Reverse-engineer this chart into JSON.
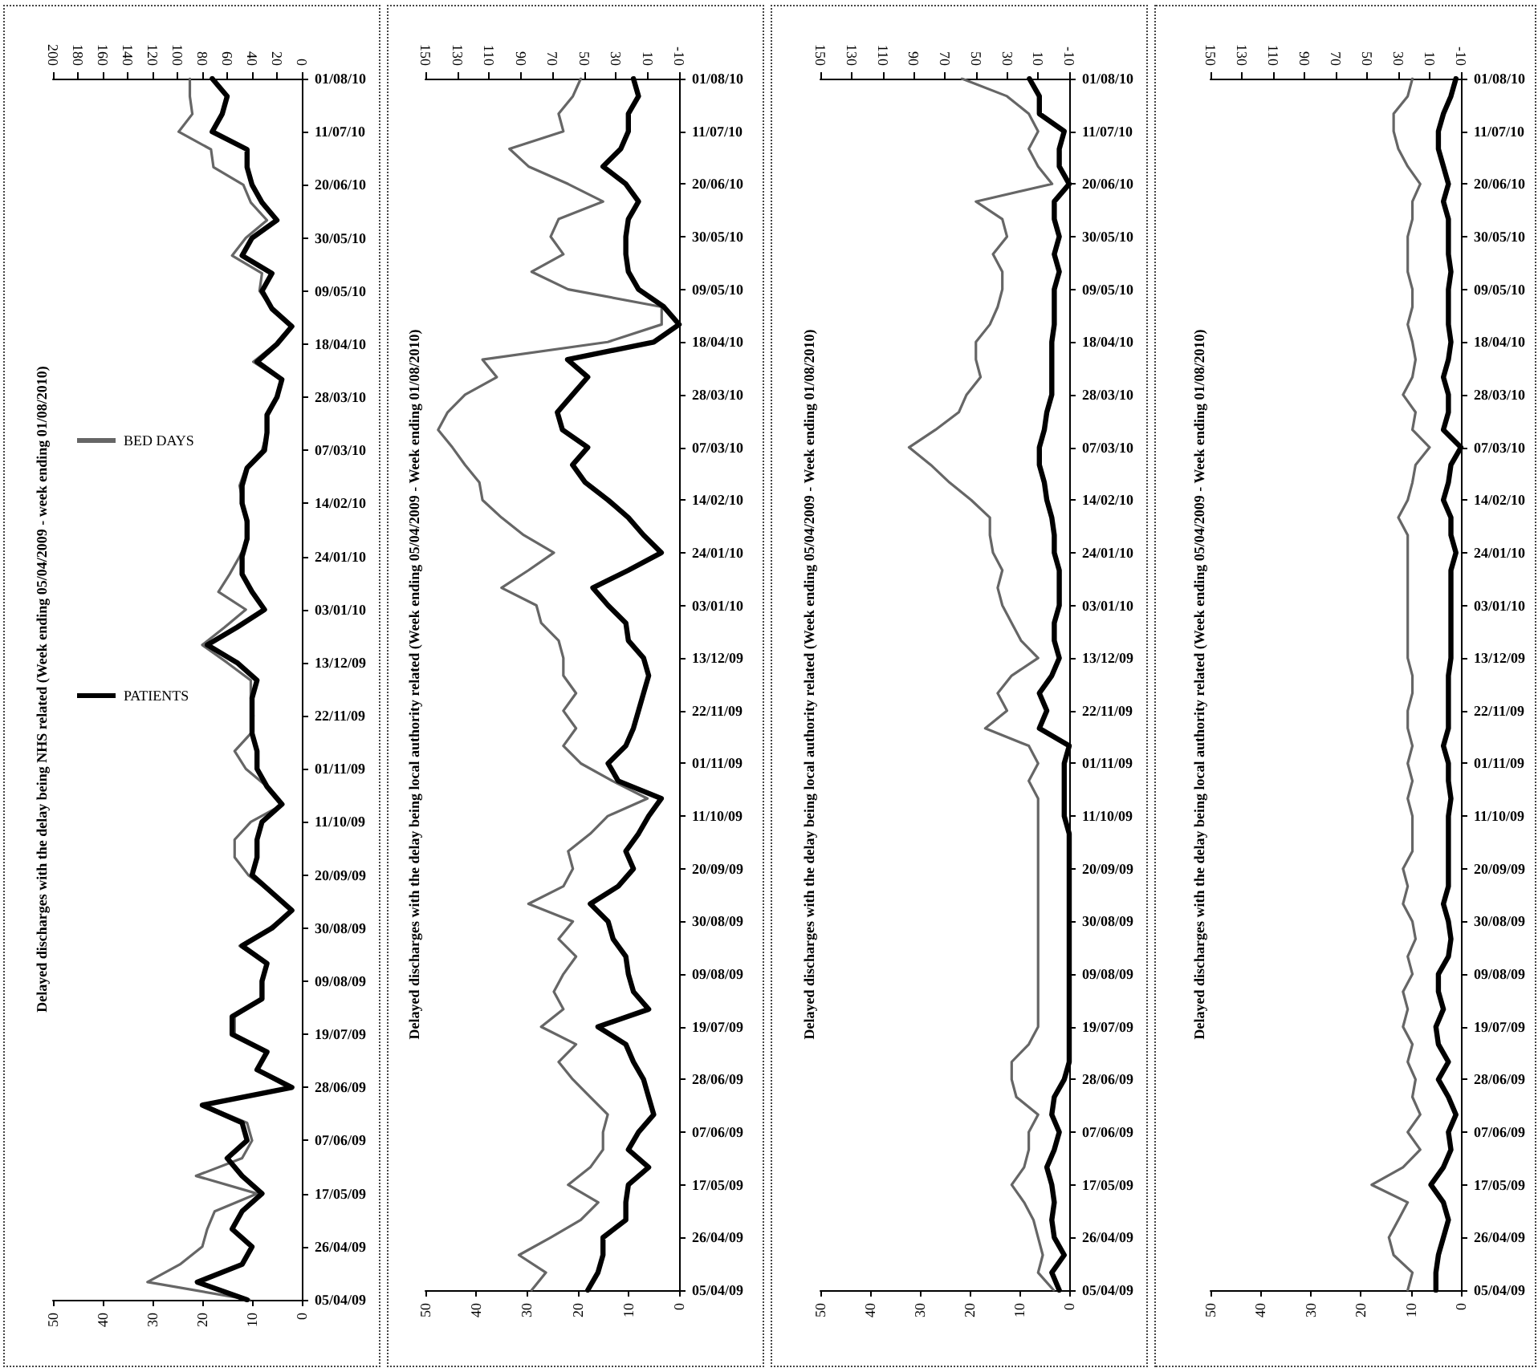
{
  "chart_data": [
    {
      "type": "line",
      "orientation": "horizontal",
      "title": "Delayed discharges with the delay being NHS related (Week ending 05/04/2009 - week ending 01/08/2010)",
      "categories": [
        "01/08/10",
        null,
        null,
        "11/07/10",
        null,
        null,
        "20/06/10",
        null,
        null,
        "30/05/10",
        null,
        null,
        "09/05/10",
        null,
        null,
        "18/04/10",
        null,
        null,
        "28/03/10",
        null,
        null,
        "07/03/10",
        null,
        null,
        "14/02/10",
        null,
        null,
        "24/01/10",
        null,
        null,
        "03/01/10",
        null,
        null,
        "13/12/09",
        null,
        null,
        "22/11/09",
        null,
        null,
        "01/11/09",
        null,
        null,
        "11/10/09",
        null,
        null,
        "20/09/09",
        null,
        null,
        "30/08/09",
        null,
        null,
        "09/08/09",
        null,
        null,
        "19/07/09",
        null,
        null,
        "28/06/09",
        null,
        null,
        "07/06/09",
        null,
        null,
        "17/05/09",
        null,
        null,
        "26/04/09",
        null,
        null,
        "05/04/09"
      ],
      "series": [
        {
          "name": "PATIENTS",
          "color": "#000000",
          "values": [
            18,
            15,
            16,
            18,
            11,
            11,
            10,
            8,
            5,
            10,
            12,
            6,
            8,
            6,
            2,
            5,
            9,
            4,
            5,
            7,
            7,
            7.5,
            11,
            12,
            12,
            11,
            11,
            12,
            12,
            10,
            7.5,
            13,
            19,
            13,
            9,
            10,
            10,
            10,
            9,
            9,
            7,
            4,
            8,
            9,
            9,
            10,
            6,
            2,
            6,
            12,
            7,
            8,
            8,
            14,
            14,
            7,
            9,
            2,
            20,
            12,
            11,
            15,
            12,
            8,
            12,
            14,
            10,
            12,
            21,
            11
          ]
        },
        {
          "name": "BED DAYS",
          "color": "#666666",
          "axis": "x2",
          "values": [
            90,
            90,
            88,
            99,
            73,
            71,
            47,
            41,
            28,
            45,
            56,
            32,
            34,
            24,
            9,
            21,
            39,
            17,
            19,
            28,
            28,
            32,
            45,
            50,
            47,
            45,
            43,
            50,
            58,
            67,
            45,
            62,
            80,
            60,
            41,
            41,
            39,
            41,
            54,
            45,
            28,
            15,
            41,
            54,
            54,
            43,
            24,
            8,
            26,
            50,
            28,
            32,
            32,
            54,
            54,
            28,
            37,
            11,
            78,
            44,
            40,
            48,
            85,
            36,
            70,
            76,
            80,
            98,
            124,
            42
          ]
        }
      ],
      "xlim": [
        50,
        0
      ],
      "xticks": [
        50,
        40,
        30,
        20,
        10,
        0
      ],
      "x2lim": [
        200,
        0
      ],
      "x2ticks": [
        200,
        180,
        160,
        140,
        120,
        100,
        80,
        60,
        40,
        20,
        0
      ],
      "legend": "left"
    },
    {
      "type": "line",
      "orientation": "horizontal",
      "title": "Delayed discharges with the delay being local authority related (Week ending 05/04/2009 - Week ending 01/08/2010)",
      "categories": [
        "01/08/10",
        null,
        null,
        "11/07/10",
        null,
        null,
        "20/06/10",
        null,
        null,
        "30/05/10",
        null,
        null,
        "09/05/10",
        null,
        null,
        "18/04/10",
        null,
        null,
        "28/03/10",
        null,
        null,
        "07/03/10",
        null,
        null,
        "14/02/10",
        null,
        null,
        "24/01/10",
        null,
        null,
        "03/01/10",
        null,
        null,
        "13/12/09",
        null,
        null,
        "22/11/09",
        null,
        null,
        "01/11/09",
        null,
        null,
        "11/10/09",
        null,
        null,
        "20/09/09",
        null,
        null,
        "30/08/09",
        null,
        null,
        "09/08/09",
        null,
        null,
        "19/07/09",
        null,
        null,
        "28/06/09",
        null,
        null,
        "07/06/09",
        null,
        null,
        "17/05/09",
        null,
        null,
        "26/04/09",
        null,
        null,
        "05/04/09"
      ],
      "series": [
        {
          "color": "#000000",
          "values": [
            9,
            8,
            10,
            10,
            11.5,
            15,
            10.5,
            8,
            10,
            10.5,
            10.5,
            10,
            8,
            3,
            0,
            5,
            22,
            18,
            21,
            24,
            23,
            18,
            21,
            18.5,
            14,
            10,
            7,
            3.5,
            10,
            17,
            14,
            10.5,
            10,
            7,
            6,
            7,
            8,
            9,
            10.5,
            14,
            12,
            3.5,
            6,
            8,
            10.5,
            9,
            12,
            17.5,
            14,
            13,
            10.5,
            10,
            9,
            6,
            16,
            10.5,
            9,
            7,
            6,
            5,
            8,
            10,
            6,
            10,
            10.5,
            10.5,
            15,
            15,
            16,
            18
          ]
        },
        {
          "color": "#666666",
          "axis": "x2",
          "values": [
            52,
            57,
            66,
            63,
            97,
            85,
            60,
            38,
            66,
            71,
            63,
            83,
            60,
            1,
            1,
            35,
            114,
            105,
            125,
            136,
            142,
            133,
            125,
            116,
            114,
            102,
            88,
            69,
            85,
            102,
            80,
            77,
            66,
            63,
            63,
            55,
            63,
            55,
            63,
            52,
            32,
            10,
            35,
            46,
            60,
            57,
            63,
            85,
            57,
            66,
            55,
            63,
            69,
            63,
            77,
            55,
            66,
            57,
            46,
            35,
            38,
            38,
            46,
            60,
            41,
            52,
            71,
            91,
            74,
            83
          ]
        }
      ],
      "xlim": [
        50,
        0
      ],
      "xticks": [
        50,
        40,
        30,
        20,
        10,
        0
      ],
      "x2lim": [
        150,
        -10
      ],
      "x2ticks": [
        150,
        130,
        110,
        90,
        70,
        50,
        30,
        10,
        -10
      ]
    },
    {
      "type": "line",
      "orientation": "horizontal",
      "title": "Delayed discharges with the delay being local authority related (Week ending 05/04/2009 - Week ending 01/08/2010)",
      "categories": [
        "01/08/10",
        null,
        null,
        "11/07/10",
        null,
        null,
        "20/06/10",
        null,
        null,
        "30/05/10",
        null,
        null,
        "09/05/10",
        null,
        null,
        "18/04/10",
        null,
        null,
        "28/03/10",
        null,
        null,
        "07/03/10",
        null,
        null,
        "14/02/10",
        null,
        null,
        "24/01/10",
        null,
        null,
        "03/01/10",
        null,
        null,
        "13/12/09",
        null,
        null,
        "22/11/09",
        null,
        null,
        "01/11/09",
        null,
        null,
        "11/10/09",
        null,
        null,
        "20/09/09",
        null,
        null,
        "30/08/09",
        null,
        null,
        "09/08/09",
        null,
        null,
        "19/07/09",
        null,
        null,
        "28/06/09",
        null,
        null,
        "07/06/09",
        null,
        null,
        "17/05/09",
        null,
        null,
        "26/04/09",
        null,
        null,
        "05/04/09"
      ],
      "series": [
        {
          "color": "#000000",
          "values": [
            8,
            6,
            6,
            1,
            2,
            2,
            0,
            3,
            3,
            2,
            3,
            2,
            3,
            3,
            3,
            3.5,
            3.5,
            3.5,
            3.5,
            4.5,
            5,
            6,
            6,
            5,
            4.5,
            3.5,
            3,
            3,
            2,
            2,
            2,
            3,
            3,
            2,
            3.5,
            6,
            4.5,
            6,
            0,
            1,
            1,
            1,
            1,
            0,
            0,
            0,
            0,
            0,
            0,
            0,
            0,
            0,
            0,
            0,
            0,
            0,
            0,
            1,
            3,
            3.5,
            2,
            3,
            4.5,
            3.5,
            3,
            3.5,
            3,
            1,
            3.5,
            2
          ]
        },
        {
          "color": "#666666",
          "axis": "x2",
          "values": [
            59,
            30,
            16,
            10,
            16,
            10,
            1,
            50,
            33,
            30,
            39,
            33,
            33,
            36,
            41,
            50,
            50,
            47,
            56,
            61,
            76,
            93,
            79,
            67,
            53,
            41,
            41,
            39,
            33,
            36,
            33,
            27,
            21,
            10,
            27,
            36,
            30,
            44,
            16,
            10,
            16,
            10,
            10,
            10,
            10,
            10,
            10,
            10,
            10,
            10,
            10,
            10,
            10,
            10,
            10,
            16,
            27,
            27,
            24,
            10,
            16,
            16,
            19,
            27,
            19,
            13,
            10,
            7,
            10,
            0
          ]
        }
      ],
      "xlim": [
        50,
        0
      ],
      "xticks": [
        50,
        40,
        30,
        20,
        10,
        0
      ],
      "x2lim": [
        150,
        -10
      ],
      "x2ticks": [
        150,
        130,
        110,
        90,
        70,
        50,
        30,
        10,
        -10
      ]
    },
    {
      "type": "line",
      "orientation": "horizontal",
      "title": "Delayed discharges with the delay being local authority related (Week ending 05/04/2009 - Week ending 01/08/2010)",
      "categories": [
        "01/08/10",
        null,
        null,
        "11/07/10",
        null,
        null,
        "20/06/10",
        null,
        null,
        "30/05/10",
        null,
        null,
        "09/05/10",
        null,
        null,
        "18/04/10",
        null,
        null,
        "28/03/10",
        null,
        null,
        "07/03/10",
        null,
        null,
        "14/02/10",
        null,
        null,
        "24/01/10",
        null,
        null,
        "03/01/10",
        null,
        null,
        "13/12/09",
        null,
        null,
        "22/11/09",
        null,
        null,
        "01/11/09",
        null,
        null,
        "11/10/09",
        null,
        null,
        "20/09/09",
        null,
        null,
        "30/08/09",
        null,
        null,
        "09/08/09",
        null,
        null,
        "19/07/09",
        null,
        null,
        "28/06/09",
        null,
        null,
        "07/06/09",
        null,
        null,
        "17/05/09",
        null,
        null,
        "26/04/09",
        null,
        null,
        "05/04/09"
      ],
      "series": [
        {
          "color": "#000000",
          "values": [
            1,
            2,
            3.5,
            4.5,
            4.5,
            3.5,
            2.5,
            3.5,
            2.5,
            2.5,
            2.5,
            2,
            2.5,
            2.5,
            2.5,
            2,
            2.5,
            3.5,
            2.5,
            2.5,
            3.5,
            0,
            2,
            2.5,
            3.5,
            2,
            2,
            1,
            2,
            2,
            2,
            2,
            2,
            2,
            2.5,
            2.5,
            2.5,
            2.5,
            3.5,
            2.5,
            2.5,
            2,
            2.5,
            2.5,
            2.5,
            2.5,
            2.5,
            3.5,
            2.5,
            2,
            2.5,
            4.5,
            4.5,
            3.5,
            5,
            4.5,
            2.5,
            4.5,
            2.5,
            1,
            2.5,
            2,
            3.5,
            6,
            3.5,
            2.5,
            3.5,
            4.5,
            5,
            5
          ]
        },
        {
          "color": "#666666",
          "axis": "x2",
          "values": [
            21,
            24,
            33,
            33,
            30,
            24,
            16,
            21,
            21,
            24,
            24,
            24,
            21,
            21,
            24,
            21,
            19,
            21,
            27,
            19,
            21,
            10,
            19,
            21,
            24,
            30,
            24,
            24,
            24,
            24,
            24,
            24,
            24,
            24,
            21,
            21,
            24,
            24,
            21,
            24,
            21,
            24,
            21,
            21,
            21,
            27,
            24,
            27,
            21,
            19,
            24,
            21,
            27,
            24,
            27,
            21,
            24,
            19,
            21,
            16,
            24,
            16,
            27,
            47,
            24,
            30,
            36,
            33,
            21,
            24
          ]
        }
      ],
      "xlim": [
        50,
        0
      ],
      "xticks": [
        50,
        40,
        30,
        20,
        10,
        0
      ],
      "x2lim": [
        150,
        -10
      ],
      "x2ticks": [
        150,
        130,
        110,
        90,
        70,
        50,
        30,
        10,
        -10
      ]
    }
  ]
}
